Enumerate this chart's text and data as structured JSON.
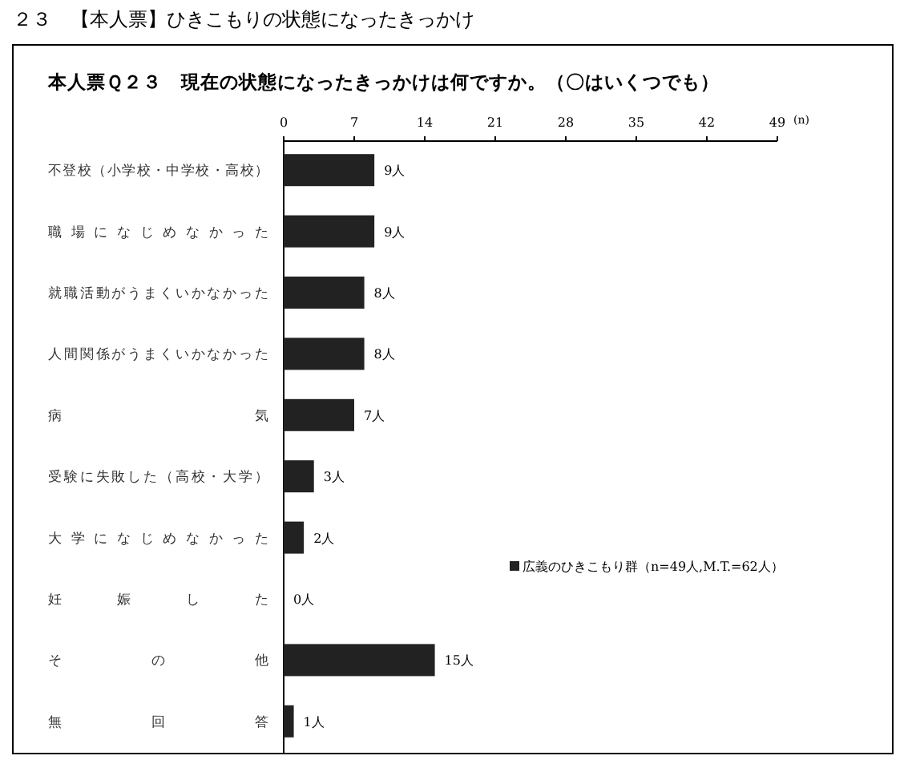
{
  "chart_data": {
    "type": "bar",
    "orientation": "horizontal",
    "title": "２３　【本人票】ひきこもりの状態になったきっかけ",
    "subtitle": "本人票Ｑ２３　現在の状態になったきっかけは何ですか。（〇はいくつでも）",
    "xlabel": "(n)",
    "categories": [
      "不登校（小学校・中学校・高校）",
      "職場になじめなかった",
      "就職活動がうまくいかなかった",
      "人間関係がうまくいかなかった",
      "病気",
      "受験に失敗した（高校・大学）",
      "大学になじめなかった",
      "妊娠した",
      "その他",
      "無回答"
    ],
    "series": [
      {
        "name": "広義のひきこもり群（n=49人,M.T.=62人）",
        "color": "#222222",
        "values": [
          9,
          9,
          8,
          8,
          7,
          3,
          2,
          0,
          15,
          1
        ],
        "value_labels": [
          "9人",
          "9人",
          "8人",
          "8人",
          "7人",
          "3人",
          "2人",
          "0人",
          "15人",
          "1人"
        ]
      }
    ],
    "xlim": [
      0,
      49
    ],
    "xticks": [
      0,
      7,
      14,
      21,
      28,
      35,
      42,
      49
    ],
    "grid": false,
    "legend": "right"
  }
}
